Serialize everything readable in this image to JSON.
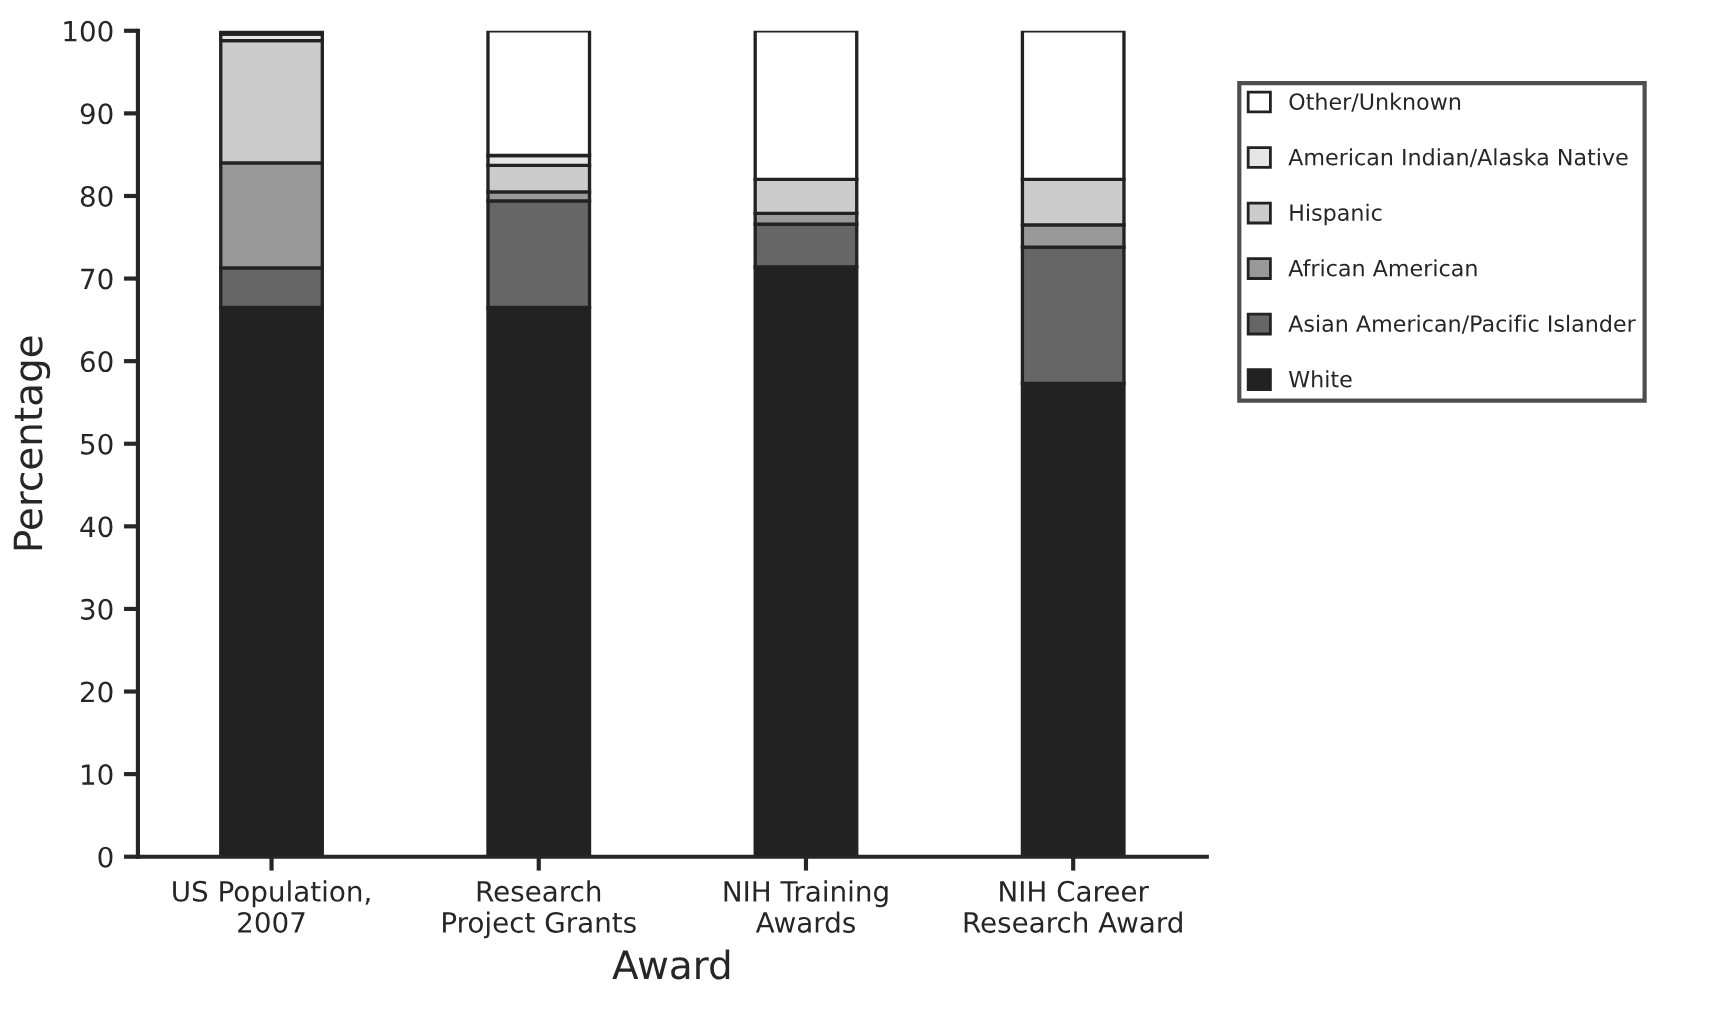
{
  "chart_data": {
    "type": "bar",
    "stacked": true,
    "xlabel": "Award",
    "ylabel": "Percentage",
    "categories": [
      "US Population,\n2007",
      "Research\nProject Grants",
      "NIH Training\nAwards",
      "NIH Career\nResearch Award"
    ],
    "series": [
      {
        "name": "White",
        "color": "#222222",
        "values": [
          66.5,
          66.5,
          71.4,
          57.3
        ]
      },
      {
        "name": "Asian American/Pacific Islander",
        "color": "#666666",
        "values": [
          4.8,
          12.9,
          5.2,
          16.5
        ]
      },
      {
        "name": "African American",
        "color": "#999999",
        "values": [
          12.7,
          1.1,
          1.3,
          2.7
        ]
      },
      {
        "name": "Hispanic",
        "color": "#cccccc",
        "values": [
          14.8,
          3.2,
          4.1,
          5.5
        ]
      },
      {
        "name": "American Indian/Alaska Native",
        "color": "#e6e6e6",
        "values": [
          0.8,
          1.2,
          null,
          null
        ]
      },
      {
        "name": "Other/Unknown",
        "color": "#ffffff",
        "values": [
          0.4,
          15.1,
          18.0,
          18.0
        ]
      }
    ],
    "ylim": [
      0,
      100
    ],
    "yticks": [
      0,
      10,
      20,
      30,
      40,
      50,
      60,
      70,
      80,
      90,
      100
    ],
    "grid": false,
    "legend": "right"
  }
}
